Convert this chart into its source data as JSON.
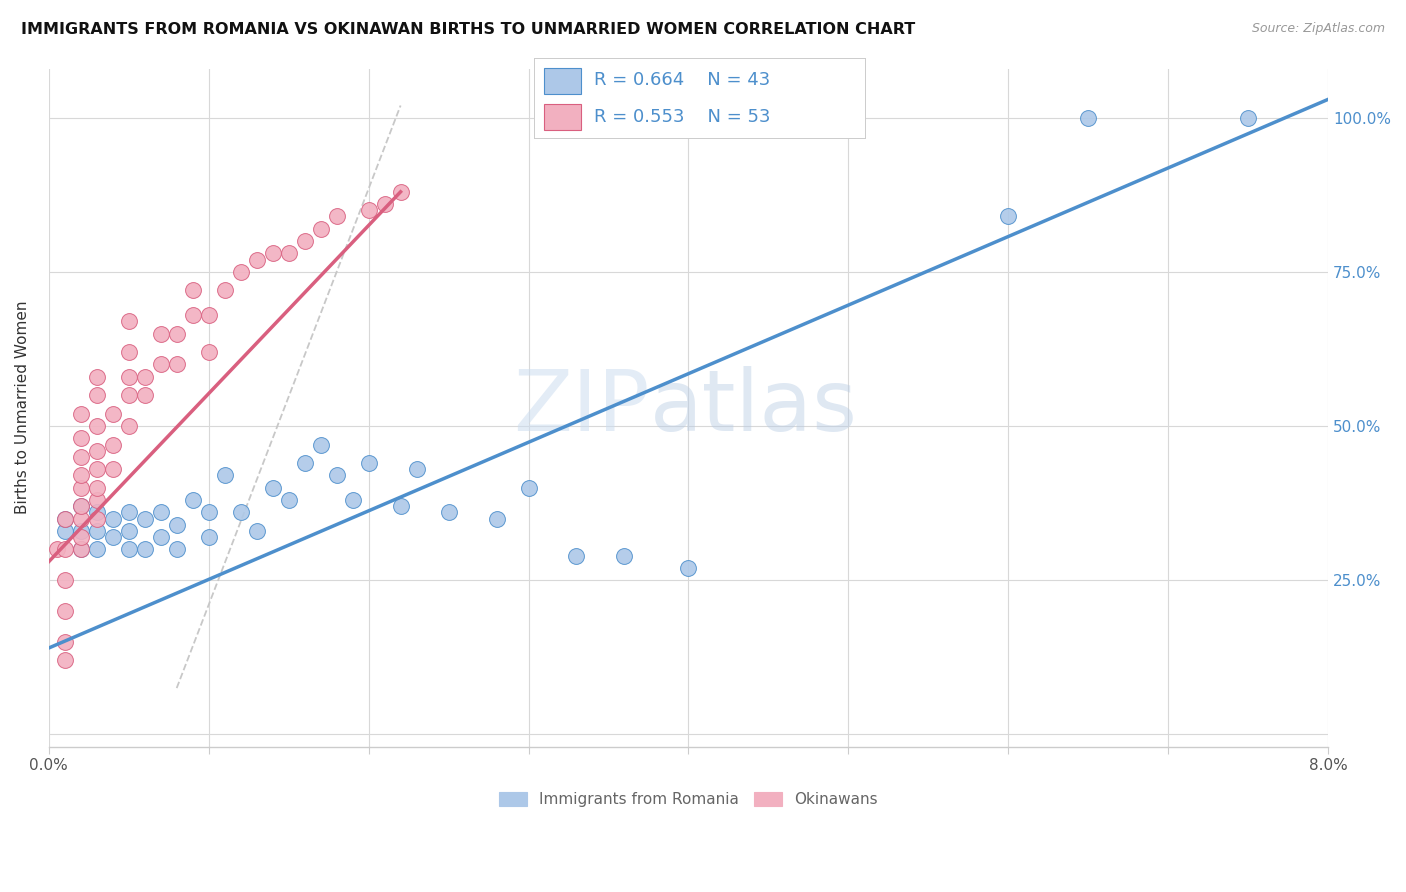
{
  "title": "IMMIGRANTS FROM ROMANIA VS OKINAWAN BIRTHS TO UNMARRIED WOMEN CORRELATION CHART",
  "source": "Source: ZipAtlas.com",
  "ylabel": "Births to Unmarried Women",
  "legend_blue_r": "R = 0.664",
  "legend_blue_n": "N = 43",
  "legend_pink_r": "R = 0.553",
  "legend_pink_n": "N = 53",
  "blue_color": "#adc8e8",
  "pink_color": "#f2b0c0",
  "blue_line_color": "#4d8fcc",
  "pink_line_color": "#d95f7f",
  "legend_text_color": "#4d8fcc",
  "watermark_zip": "ZIP",
  "watermark_atlas": "atlas",
  "blue_scatter_x": [
    0.001,
    0.001,
    0.002,
    0.002,
    0.002,
    0.003,
    0.003,
    0.003,
    0.004,
    0.004,
    0.005,
    0.005,
    0.005,
    0.006,
    0.006,
    0.007,
    0.007,
    0.008,
    0.008,
    0.009,
    0.01,
    0.01,
    0.011,
    0.012,
    0.013,
    0.014,
    0.015,
    0.016,
    0.017,
    0.018,
    0.019,
    0.02,
    0.022,
    0.023,
    0.025,
    0.028,
    0.03,
    0.033,
    0.036,
    0.04,
    0.06,
    0.065,
    0.075
  ],
  "blue_scatter_y": [
    0.33,
    0.35,
    0.3,
    0.33,
    0.37,
    0.3,
    0.33,
    0.36,
    0.32,
    0.35,
    0.3,
    0.33,
    0.36,
    0.3,
    0.35,
    0.32,
    0.36,
    0.3,
    0.34,
    0.38,
    0.32,
    0.36,
    0.42,
    0.36,
    0.33,
    0.4,
    0.38,
    0.44,
    0.47,
    0.42,
    0.38,
    0.44,
    0.37,
    0.43,
    0.36,
    0.35,
    0.4,
    0.29,
    0.29,
    0.27,
    0.84,
    1.0,
    1.0
  ],
  "pink_scatter_x": [
    0.0005,
    0.001,
    0.001,
    0.001,
    0.001,
    0.001,
    0.001,
    0.002,
    0.002,
    0.002,
    0.002,
    0.002,
    0.002,
    0.002,
    0.002,
    0.002,
    0.003,
    0.003,
    0.003,
    0.003,
    0.003,
    0.003,
    0.003,
    0.003,
    0.004,
    0.004,
    0.004,
    0.005,
    0.005,
    0.005,
    0.005,
    0.005,
    0.006,
    0.006,
    0.007,
    0.007,
    0.008,
    0.008,
    0.009,
    0.009,
    0.01,
    0.01,
    0.011,
    0.012,
    0.013,
    0.014,
    0.015,
    0.016,
    0.017,
    0.018,
    0.02,
    0.021,
    0.022
  ],
  "pink_scatter_y": [
    0.3,
    0.12,
    0.15,
    0.2,
    0.25,
    0.3,
    0.35,
    0.3,
    0.32,
    0.35,
    0.37,
    0.4,
    0.42,
    0.45,
    0.48,
    0.52,
    0.35,
    0.38,
    0.4,
    0.43,
    0.46,
    0.5,
    0.55,
    0.58,
    0.43,
    0.47,
    0.52,
    0.5,
    0.55,
    0.58,
    0.62,
    0.67,
    0.55,
    0.58,
    0.6,
    0.65,
    0.6,
    0.65,
    0.68,
    0.72,
    0.62,
    0.68,
    0.72,
    0.75,
    0.77,
    0.78,
    0.78,
    0.8,
    0.82,
    0.84,
    0.85,
    0.86,
    0.88
  ],
  "blue_line_x0": 0.0,
  "blue_line_x1": 0.08,
  "blue_line_y0": 0.14,
  "blue_line_y1": 1.03,
  "pink_line_x0": 0.0,
  "pink_line_x1": 0.022,
  "pink_line_y0": 0.28,
  "pink_line_y1": 0.88,
  "dash_line_x0": 0.008,
  "dash_line_y0": 0.075,
  "dash_line_x1": 0.022,
  "dash_line_y1": 1.02,
  "xmin": 0.0,
  "xmax": 0.08,
  "ymin": -0.02,
  "ymax": 1.08
}
